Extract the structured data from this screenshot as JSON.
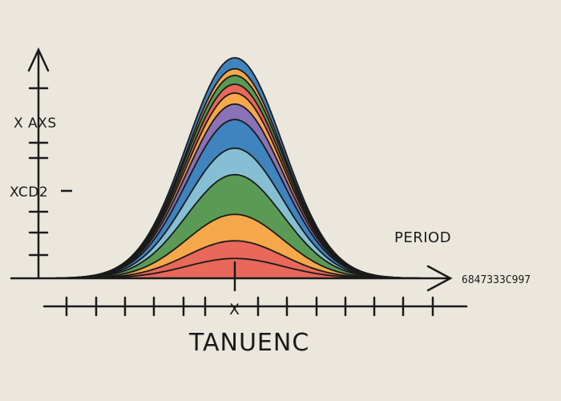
{
  "chart_data": {
    "type": "area",
    "stacked": true,
    "title": "",
    "x_axis_title": "TANUENC",
    "x_center_label": "X",
    "x_axis_end_label": "6847333C997",
    "period_label": "PERIOD",
    "y_axis_labels": [
      "X AXS",
      "XCD2"
    ],
    "grid": false,
    "legend": "none",
    "shape": "gaussian bell, layers stacked from bottom",
    "series": [
      {
        "color": "#e8685a",
        "peak": 0.09
      },
      {
        "color": "#e8685a",
        "peak": 0.08
      },
      {
        "color": "#f5a84a",
        "peak": 0.12
      },
      {
        "color": "#5a9a55",
        "peak": 0.18
      },
      {
        "color": "#86bfd3",
        "peak": 0.12
      },
      {
        "color": "#3f83bf",
        "peak": 0.13
      },
      {
        "color": "#8a72b6",
        "peak": 0.07
      },
      {
        "color": "#f5a84a",
        "peak": 0.05
      },
      {
        "color": "#e8685a",
        "peak": 0.04
      },
      {
        "color": "#5a9a55",
        "peak": 0.04
      },
      {
        "color": "#f5a84a",
        "peak": 0.03
      },
      {
        "color": "#3f83bf",
        "peak": 0.05
      }
    ]
  }
}
